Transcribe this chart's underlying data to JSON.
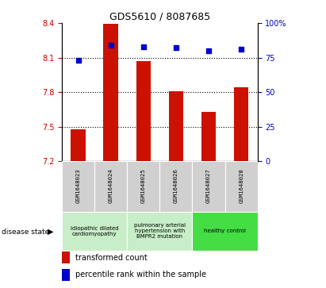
{
  "title": "GDS5610 / 8087685",
  "samples": [
    "GSM1648023",
    "GSM1648024",
    "GSM1648025",
    "GSM1648026",
    "GSM1648027",
    "GSM1648028"
  ],
  "transformed_count": [
    7.48,
    8.39,
    8.07,
    7.81,
    7.63,
    7.84
  ],
  "percentile_rank": [
    73,
    84,
    83,
    82,
    80,
    81
  ],
  "bar_bottom": 7.2,
  "ylim_left": [
    7.2,
    8.4
  ],
  "ylim_right": [
    0,
    100
  ],
  "yticks_left": [
    7.2,
    7.5,
    7.8,
    8.1,
    8.4
  ],
  "yticks_right": [
    0,
    25,
    50,
    75,
    100
  ],
  "bar_color": "#cc1100",
  "dot_color": "#0000cc",
  "disease_groups": [
    {
      "label": "idiopathic dilated\ncardiomyopathy",
      "start": 0,
      "end": 1,
      "color": "#c8eec8"
    },
    {
      "label": "pulmonary arterial\nhypertension with\nBMPR2 mutation",
      "start": 2,
      "end": 3,
      "color": "#c8eec8"
    },
    {
      "label": "healthy control",
      "start": 4,
      "end": 5,
      "color": "#44dd44"
    }
  ],
  "disease_state_label": "disease state",
  "legend_bar_label": "transformed count",
  "legend_dot_label": "percentile rank within the sample",
  "tick_color_left": "#cc0000",
  "tick_color_right": "#0000cc",
  "figsize": [
    4.11,
    3.63
  ],
  "dpi": 100
}
